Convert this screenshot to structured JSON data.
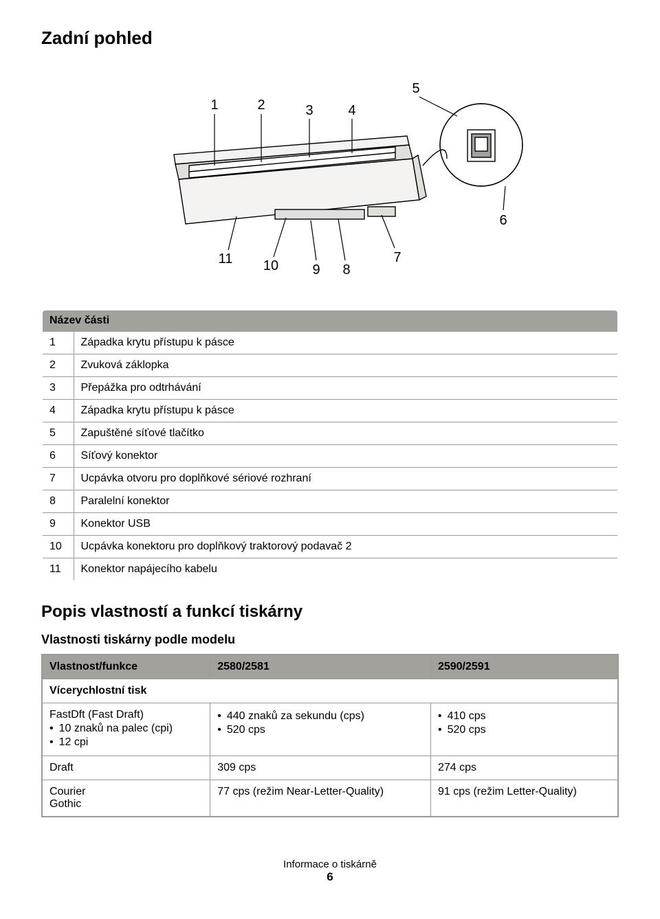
{
  "page": {
    "title": "Zadní pohled",
    "footer_text": "Informace o tiskárně",
    "footer_page": "6"
  },
  "diagram": {
    "labels": [
      "1",
      "2",
      "3",
      "4",
      "5",
      "6",
      "7",
      "8",
      "9",
      "10",
      "11"
    ],
    "label_fontsize": 20,
    "colors": {
      "fill_light": "#f4f3f1",
      "fill_med": "#e1dfdb",
      "stroke": "#000000",
      "leader": "#000000",
      "white": "#ffffff"
    }
  },
  "parts_table": {
    "header": "Název části",
    "rows": [
      {
        "n": "1",
        "label": "Západka krytu přístupu k pásce"
      },
      {
        "n": "2",
        "label": "Zvuková záklopka"
      },
      {
        "n": "3",
        "label": "Přepážka pro odtrhávání"
      },
      {
        "n": "4",
        "label": "Západka krytu přístupu k pásce"
      },
      {
        "n": "5",
        "label": "Zapuštěné síťové tlačítko"
      },
      {
        "n": "6",
        "label": "Síťový konektor"
      },
      {
        "n": "7",
        "label": "Ucpávka otvoru pro doplňkové sériové rozhraní"
      },
      {
        "n": "8",
        "label": "Paralelní konektor"
      },
      {
        "n": "9",
        "label": "Konektor USB"
      },
      {
        "n": "10",
        "label": "Ucpávka konektoru pro doplňkový traktorový podavač 2"
      },
      {
        "n": "11",
        "label": "Konektor napájecího kabelu"
      }
    ]
  },
  "section2": {
    "heading": "Popis vlastností a funkcí tiskárny",
    "subheading": "Vlastnosti tiskárny podle modelu"
  },
  "feat_table": {
    "headers": [
      "Vlastnost/funkce",
      "2580/2581",
      "2590/2591"
    ],
    "section_label": "Vícerychlostní tisk",
    "rows": [
      {
        "mode": "FastDft (Fast Draft)",
        "mode_bullets": [
          "10 znaků na palec (cpi)",
          "12 cpi"
        ],
        "c2_bullets": [
          "440 znaků za sekundu (cps)",
          "520 cps"
        ],
        "c3_bullets": [
          "410 cps",
          "520 cps"
        ]
      },
      {
        "mode": "Draft",
        "c2": "309 cps",
        "c3": "274 cps"
      },
      {
        "mode_lines": [
          "Courier",
          "Gothic"
        ],
        "c2": "77 cps (režim Near-Letter-Quality)",
        "c3": "91 cps (režim Letter-Quality)"
      }
    ]
  }
}
